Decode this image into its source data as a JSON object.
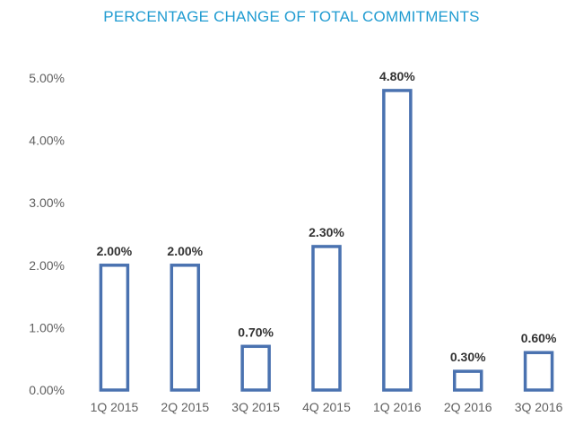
{
  "chart_data": {
    "type": "bar",
    "title": "PERCENTAGE CHANGE OF TOTAL COMMITMENTS",
    "xlabel": "",
    "ylabel": "",
    "categories": [
      "1Q 2015",
      "2Q 2015",
      "3Q 2015",
      "4Q 2015",
      "1Q 2016",
      "2Q 2016",
      "3Q 2016"
    ],
    "values": [
      2.0,
      2.0,
      0.7,
      2.3,
      4.8,
      0.3,
      0.6
    ],
    "data_labels": [
      "2.00%",
      "2.00%",
      "0.70%",
      "2.30%",
      "4.80%",
      "0.30%",
      "0.60%"
    ],
    "ylim": [
      0,
      5
    ],
    "yticks": [
      0,
      1,
      2,
      3,
      4,
      5
    ],
    "ytick_labels": [
      "0.00%",
      "1.00%",
      "2.00%",
      "3.00%",
      "4.00%",
      "5.00%"
    ],
    "grid": false,
    "legend": "none",
    "colors": {
      "title": "#1f9bd1",
      "bar_outline": "#4a72b0",
      "bar_fill": "#ffffff",
      "axis_text": "#606060",
      "label_text": "#333333"
    }
  }
}
